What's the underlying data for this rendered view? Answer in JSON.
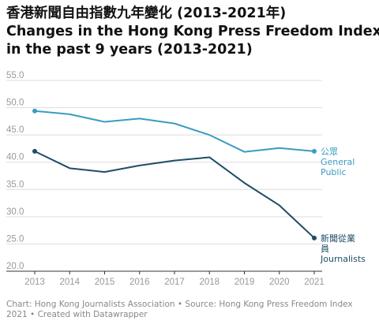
{
  "title": {
    "line1": "香港新聞自由指數九年變化 (2013-2021年)",
    "line2": "Changes in the Hong Kong Press Freedom Index",
    "line3": "in the past 9 years (2013-2021)"
  },
  "footer": "Chart: Hong Kong Journalists Association • Source: Hong Kong Press Freedom Index 2021 • Created with Datawrapper",
  "chart_data": {
    "type": "line",
    "x": [
      2013,
      2014,
      2015,
      2016,
      2017,
      2018,
      2019,
      2020,
      2021
    ],
    "ylim": [
      20.0,
      55.0
    ],
    "yticks": [
      "55.0",
      "50.0",
      "45.0",
      "40.0",
      "35.0",
      "30.0",
      "25.0",
      "20.0"
    ],
    "xticks": [
      "2013",
      "2014",
      "2015",
      "2016",
      "2017",
      "2018",
      "2019",
      "2020",
      "2021"
    ],
    "grid": true,
    "series": [
      {
        "key": "public",
        "label_lines": [
          "公眾",
          "General",
          "Public"
        ],
        "color": "#3a9cc0",
        "values": [
          49.4,
          48.8,
          47.4,
          48.0,
          47.1,
          45.0,
          41.9,
          42.6,
          42.0
        ]
      },
      {
        "key": "journalists",
        "label_lines": [
          "新聞從業",
          "員",
          "Journalists"
        ],
        "color": "#1f4d66",
        "values": [
          42.0,
          38.9,
          38.2,
          39.4,
          40.3,
          40.9,
          36.2,
          32.1,
          26.1
        ]
      }
    ]
  }
}
